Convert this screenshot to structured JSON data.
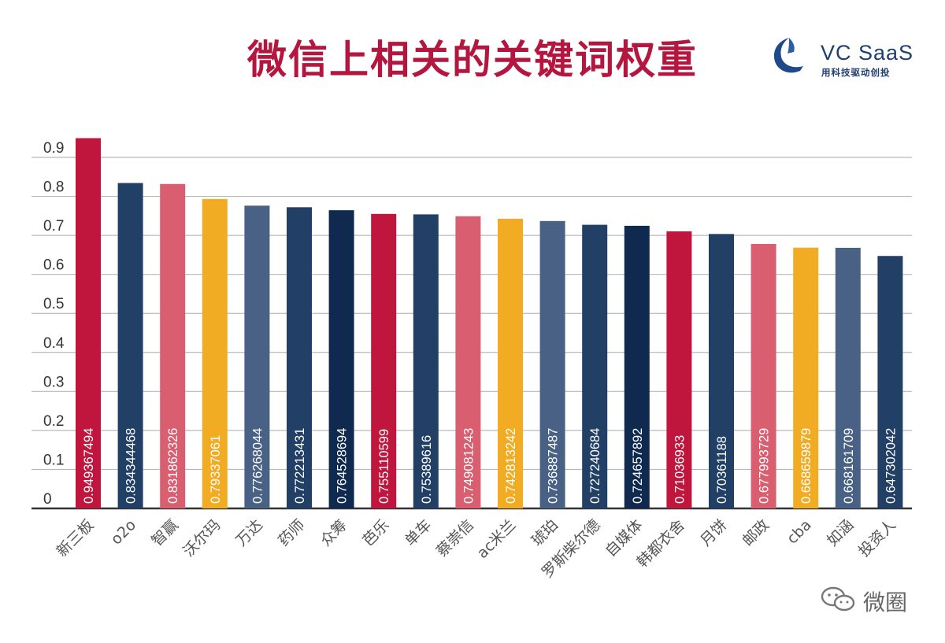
{
  "title": "微信上相关的关键词权重",
  "brand": {
    "name": "VC  SaaS",
    "slogan": "用科技驱动创投",
    "logo_icon": "vc-saas-logo-icon"
  },
  "watermark": {
    "text": "微圈",
    "icon": "wechat-moments-icon"
  },
  "chart_data": {
    "type": "bar",
    "title": "微信上相关的关键词权重",
    "ylim": [
      0,
      0.9
    ],
    "yticks": [
      "0",
      "0.1",
      "0.2",
      "0.3",
      "0.4",
      "0.5",
      "0.6",
      "0.7",
      "0.8",
      "0.9"
    ],
    "grid": true,
    "categories": [
      "新三板",
      "o2o",
      "智赢",
      "沃尔玛",
      "万达",
      "药师",
      "众筹",
      "芭乐",
      "单车",
      "蔡崇信",
      "ac米兰",
      "琥珀",
      "罗斯柴尔德",
      "自媒体",
      "韩都衣舍",
      "月饼",
      "邮政",
      "cba",
      "如涵",
      "投资人"
    ],
    "values": [
      0.949367494,
      0.834344468,
      0.831862326,
      0.79337061,
      0.776268044,
      0.772213431,
      0.764528694,
      0.755110599,
      0.75389616,
      0.749081243,
      0.742813242,
      0.736887487,
      0.727240684,
      0.724657892,
      0.71036933,
      0.70361188,
      0.677993729,
      0.668659879,
      0.668161709,
      0.647302042
    ],
    "labels": [
      "0.949367494",
      "0.834344468",
      "0.831862326",
      "0.79337061",
      "0.776268044",
      "0.772213431",
      "0.764528694",
      "0.755110599",
      "0.75389616",
      "0.749081243",
      "0.742813242",
      "0.736887487",
      "0.727240684",
      "0.724657892",
      "0.71036933",
      "0.70361188",
      "0.677993729",
      "0.668659879",
      "0.668161709",
      "0.647302042"
    ],
    "colors": [
      "#c0163d",
      "#223f66",
      "#d95f70",
      "#f2ac24",
      "#496184",
      "#223f66",
      "#0f2a4e",
      "#c0163d",
      "#223f66",
      "#d95f70",
      "#f2ac24",
      "#496184",
      "#223f66",
      "#0f2a4e",
      "#c0163d",
      "#223f66",
      "#d95f70",
      "#f2ac24",
      "#496184",
      "#223f66"
    ]
  }
}
